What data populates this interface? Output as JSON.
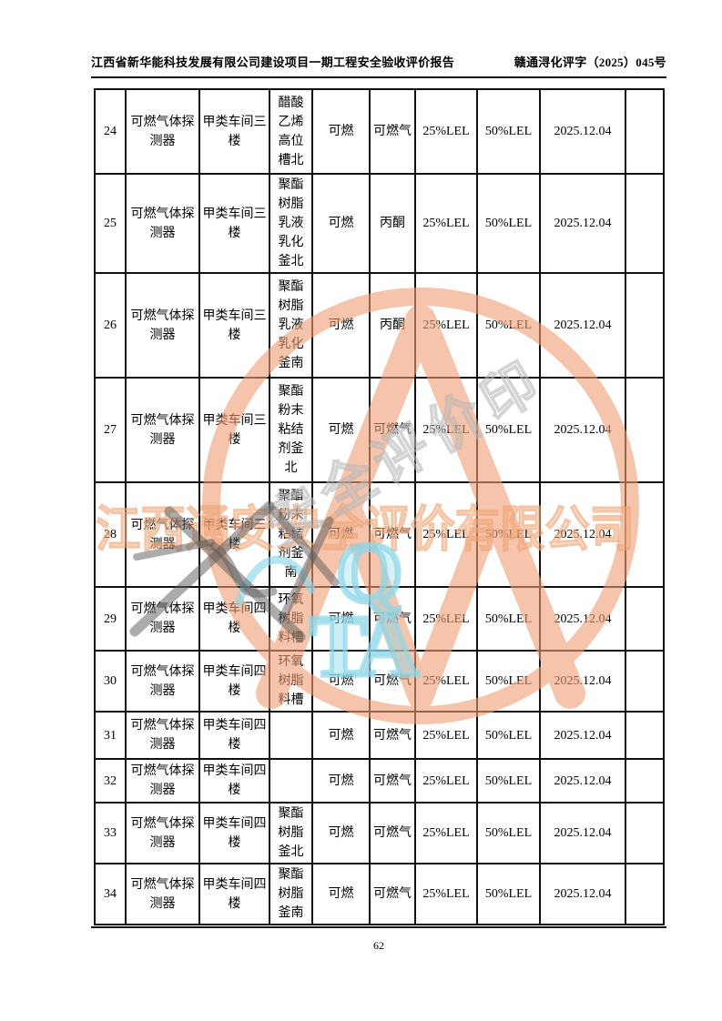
{
  "header": {
    "title_left": "江西省新华能科技发展有限公司建设项目一期工程安全验收评价报告",
    "title_right": "赣通浔化评字（2025）045号"
  },
  "table": {
    "rows": [
      {
        "cells": [
          "24",
          "可燃气体探测器",
          "甲类车间三楼",
          "醋酸乙烯高位槽北",
          "可燃",
          "可燃气",
          "25%LEL",
          "50%LEL",
          "2025.12.04",
          ""
        ]
      },
      {
        "cells": [
          "25",
          "可燃气体探测器",
          "甲类车间三楼",
          "聚酯树脂乳液乳化釜北",
          "可燃",
          "丙酮",
          "25%LEL",
          "50%LEL",
          "2025.12.04",
          ""
        ]
      },
      {
        "cells": [
          "26",
          "可燃气体探测器",
          "甲类车间三楼",
          "聚酯树脂乳液乳化釜南",
          "可燃",
          "丙酮",
          "25%LEL",
          "50%LEL",
          "2025.12.04",
          ""
        ]
      },
      {
        "cells": [
          "27",
          "可燃气体探测器",
          "甲类车间三楼",
          "聚酯粉末粘结剂釜北",
          "可燃",
          "可燃气",
          "25%LEL",
          "50%LEL",
          "2025.12.04",
          ""
        ]
      },
      {
        "cells": [
          "28",
          "可燃气体探测器",
          "甲类车间三楼",
          "聚酯粉末粘结剂釜南",
          "可燃",
          "可燃气",
          "25%LEL",
          "50%LEL",
          "2025.12.04",
          ""
        ]
      },
      {
        "cells": [
          "29",
          "可燃气体探测器",
          "甲类车间四楼",
          "环氧树脂料槽",
          "可燃",
          "可燃气",
          "25%LEL",
          "50%LEL",
          "2025.12.04",
          ""
        ]
      },
      {
        "cells": [
          "30",
          "可燃气体探测器",
          "甲类车间四楼",
          "环氧树脂料槽",
          "可燃",
          "可燃气",
          "25%LEL",
          "50%LEL",
          "2025.12.04",
          ""
        ]
      },
      {
        "cells": [
          "31",
          "可燃气体探测器",
          "甲类车间四楼",
          "",
          "可燃",
          "可燃气",
          "25%LEL",
          "50%LEL",
          "2025.12.04",
          ""
        ]
      },
      {
        "cells": [
          "32",
          "可燃气体探测器",
          "甲类车间四楼",
          "",
          "可燃",
          "可燃气",
          "25%LEL",
          "50%LEL",
          "2025.12.04",
          ""
        ]
      },
      {
        "cells": [
          "33",
          "可燃气体探测器",
          "甲类车间四楼",
          "聚酯树脂釜北",
          "可燃",
          "可燃气",
          "25%LEL",
          "50%LEL",
          "2025.12.04",
          ""
        ]
      },
      {
        "cells": [
          "34",
          "可燃气体探测器",
          "甲类车间四楼",
          "聚酯树脂釜南",
          "可燃",
          "可燃气",
          "25%LEL",
          "50%LEL",
          "2025.12.04",
          ""
        ]
      }
    ]
  },
  "watermark": {
    "company_name": "江西通安安全评价有限公司",
    "stamp_text": "安全评价印",
    "logo_letter_q": "Q",
    "logo_letters_ta": "TA",
    "ring_color": "#f09d72",
    "cyan_color": "#8ed7e8",
    "stamp_gray": "#b8b8b8",
    "ink_gray": "#5a5a5a"
  },
  "footer": {
    "page_number": "62"
  }
}
